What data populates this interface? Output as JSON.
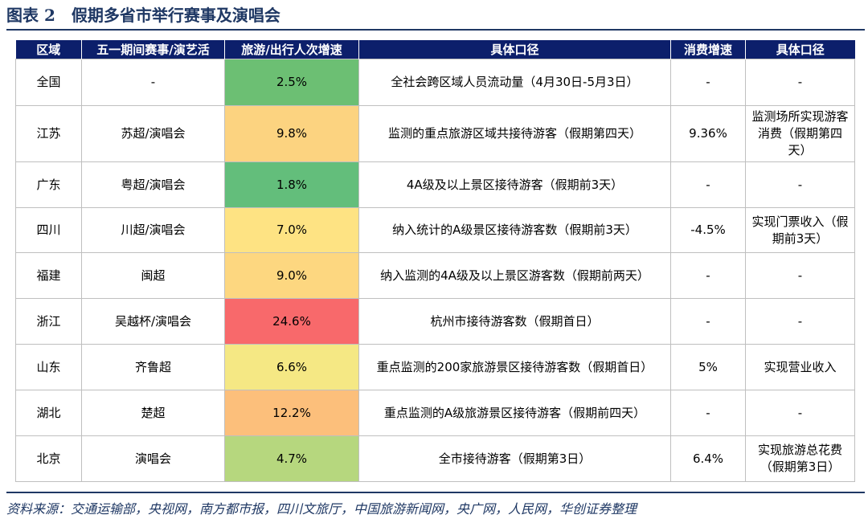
{
  "title": "图表 2　假期多省市举行赛事及演唱会",
  "headers": [
    "区域",
    "五一期间赛事/演艺活",
    "旅游/出行人次增速",
    "具体口径",
    "消费增速",
    "具体口径"
  ],
  "rows": [
    {
      "region": "全国",
      "event": "-",
      "growth": "2.5%",
      "growth_color": "#6cbf73",
      "scope": "全社会跨区域人员流动量（4月30日-5月3日）",
      "consumption": "-",
      "consumption_scope": "-"
    },
    {
      "region": "江苏",
      "event": "苏超/演唱会",
      "growth": "9.8%",
      "growth_color": "#fcd380",
      "scope": "监测的重点旅游区域共接待游客（假期第四天）",
      "consumption": "9.36%",
      "consumption_scope": "监测场所实现游客消费（假期第四天）"
    },
    {
      "region": "广东",
      "event": "粤超/演唱会",
      "growth": "1.8%",
      "growth_color": "#63be7b",
      "scope": "4A级及以上景区接待游客（假期前3天）",
      "consumption": "-",
      "consumption_scope": "-"
    },
    {
      "region": "四川",
      "event": "川超/演唱会",
      "growth": "7.0%",
      "growth_color": "#fee383",
      "scope": "纳入统计的A级景区接待游客数（假期前3天）",
      "consumption": "-4.5%",
      "consumption_scope": "实现门票收入（假期前3天）"
    },
    {
      "region": "福建",
      "event": "闽超",
      "growth": "9.0%",
      "growth_color": "#fdd780",
      "scope": "纳入监测的4A级及以上景区游客数（假期前两天）",
      "consumption": "-",
      "consumption_scope": "-"
    },
    {
      "region": "浙江",
      "event": "吴越杯/演唱会",
      "growth": "24.6%",
      "growth_color": "#f8696b",
      "scope": "杭州市接待游客数（假期首日）",
      "consumption": "-",
      "consumption_scope": "-"
    },
    {
      "region": "山东",
      "event": "齐鲁超",
      "growth": "6.6%",
      "growth_color": "#f5e884",
      "scope": "重点监测的200家旅游景区接待游客数（假期首日）",
      "consumption": "5%",
      "consumption_scope": "实现营业收入"
    },
    {
      "region": "湖北",
      "event": "楚超",
      "growth": "12.2%",
      "growth_color": "#fcbf7b",
      "scope": "重点监测的A级旅游景区接待游客（假期前四天）",
      "consumption": "-",
      "consumption_scope": "-"
    },
    {
      "region": "北京",
      "event": "演唱会",
      "growth": "4.7%",
      "growth_color": "#b6d77e",
      "scope": "全市接待游客（假期第3日）",
      "consumption": "6.4%",
      "consumption_scope": "实现旅游总花费（假期第3日）"
    }
  ],
  "source": "资料来源：交通运输部，央视网，南方都市报，四川文旅厅，中国旅游新闻网，央广网，人民网，华创证券整理"
}
